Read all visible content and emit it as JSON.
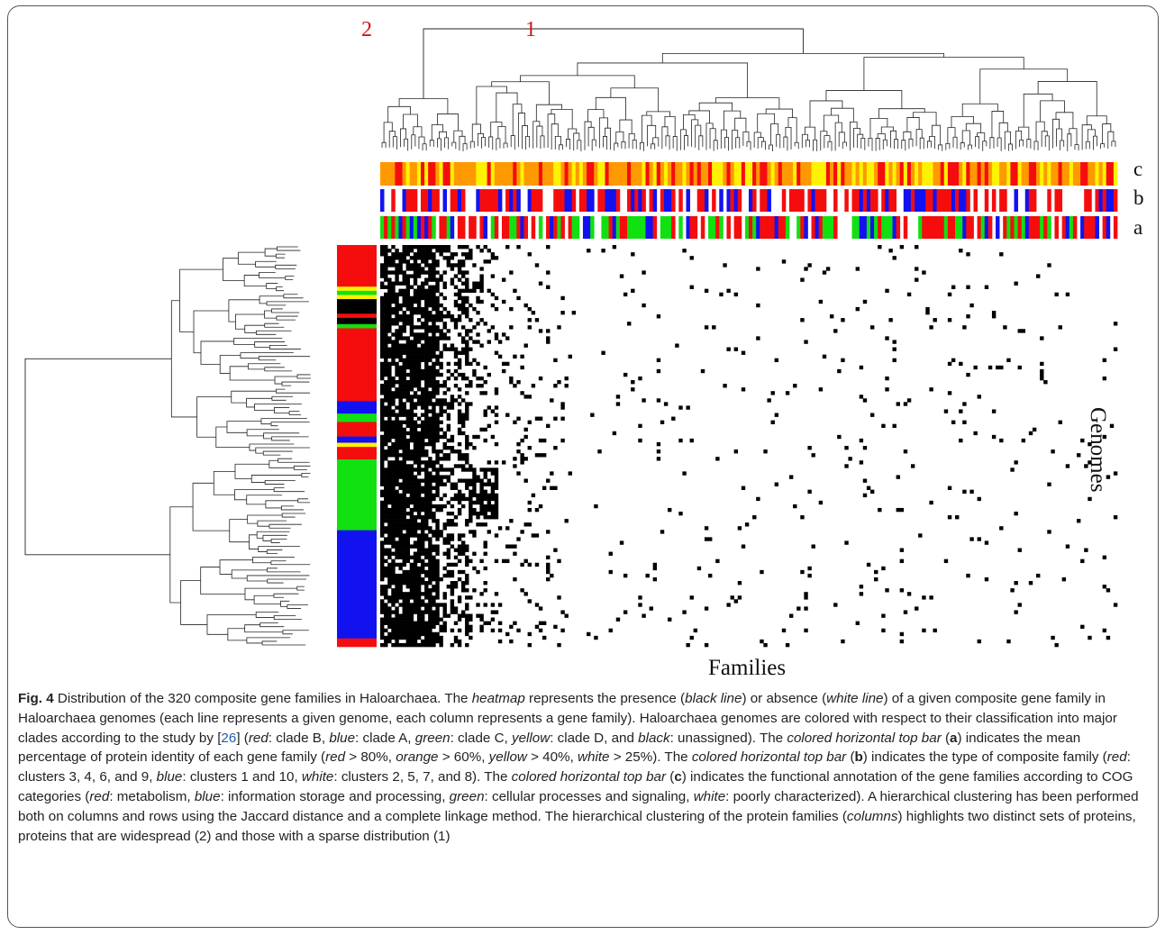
{
  "figure": {
    "cluster_label_2": "2",
    "cluster_label_1": "1",
    "bar_labels": {
      "c": "c",
      "b": "b",
      "a": "a"
    },
    "x_axis_label": "Families",
    "y_axis_label": "Genomes",
    "colors": {
      "red": "#f50d0d",
      "blue": "#1212f0",
      "green": "#11e011",
      "yellow": "#fff200",
      "orange": "#ff9900",
      "black": "#000000",
      "white": "#ffffff",
      "label_red": "#d0141a"
    }
  },
  "chart_data": {
    "type": "heatmap",
    "rows": "genomes",
    "columns": "composite gene families",
    "column_count": 320,
    "values": "binary presence (black) / absence (white)",
    "row_clade_sequence": [
      "red",
      "yellow",
      "green",
      "yellow",
      "black",
      "red",
      "black",
      "green",
      "red",
      "blue",
      "green",
      "red",
      "blue",
      "yellow",
      "red",
      "green",
      "blue",
      "red"
    ]
  },
  "caption": {
    "fig_label": "Fig. 4",
    "intro": " Distribution of the 320 composite gene families in Haloarchaea. The ",
    "heatmap": "heatmap",
    "t1": " represents the presence (",
    "black_line": "black line",
    "t2": ") or absence (",
    "white_line": "white line",
    "t3": ") of a given composite gene family in Haloarchaea genomes (each line represents a given genome, each column represents a gene family). Haloarchaea genomes are colored with respect to their classification into major clades according to the study by [",
    "ref": "26",
    "t4": "] (",
    "red1": "red",
    "t5": ": clade B, ",
    "blue1": "blue",
    "t6": ": clade A, ",
    "green1": "green",
    "t7": ": clade C, ",
    "yellow1": "yellow",
    "t8": ": clade D, and ",
    "black1": "black",
    "t9": ": unassigned). The ",
    "bar_top1": "colored horizontal top bar",
    "t10": " (",
    "a": "a",
    "t11": ") indicates the mean percentage of protein identity of each gene family (",
    "red2": "red",
    "t12": " > 80%, ",
    "orange2": "orange",
    "t13": " > 60%, ",
    "yellow2": "yellow",
    "t14": " > 40%, ",
    "white2": "white",
    "t15": " > 25%). The ",
    "bar_top2": "colored horizontal top bar",
    "t16": " (",
    "b": "b",
    "t17": ") indicates the type of composite family (",
    "red3": "red",
    "t18": ": clusters 3, 4, 6, and 9, ",
    "blue3": "blue",
    "t19": ": clusters 1 and 10, ",
    "white3": "white",
    "t20": ": clusters 2, 5, 7, and 8). The ",
    "bar_top3": "colored horizontal top bar",
    "t21": " (",
    "c": "c",
    "t22": ") indicates the functional annotation of the gene families according to COG categories (",
    "red4": "red",
    "t23": ": metabolism, ",
    "blue4": "blue",
    "t24": ": information storage and processing, ",
    "green4": "green",
    "t25": ": cellular processes and signaling, ",
    "white4": "white",
    "t26": ": poorly characterized). A hierarchical clustering has been performed both on columns and rows using the Jaccard distance and a complete linkage method. The hierarchical clustering of the protein families (",
    "columns": "columns",
    "t27": ") highlights two distinct sets of proteins, proteins that are widespread (2) and those with a sparse distribution (1)"
  }
}
